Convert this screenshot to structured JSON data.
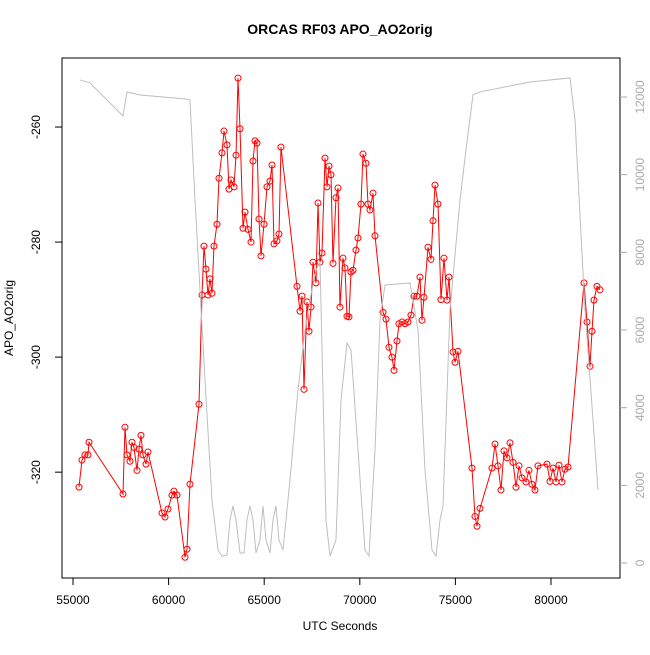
{
  "chart_data": {
    "type": "line",
    "title": "ORCAS RF03 APO_AO2orig",
    "x_label": "UTC Seconds",
    "y_label": "APO_AO2orig",
    "xlim": [
      54425,
      83609
    ],
    "ylim": [
      -338.4,
      -248
    ],
    "y2lim": [
      -386,
      13004
    ],
    "xticks": [
      55000,
      60000,
      65000,
      70000,
      75000,
      80000
    ],
    "yticks": [
      -260,
      -280,
      -300,
      -320
    ],
    "y2ticks": [
      0,
      2000,
      4000,
      6000,
      8000,
      10000,
      12000
    ],
    "y2tick_color": "#aaaaaa",
    "series": [
      {
        "color": "#ff0000",
        "marker": "circle",
        "x": [
          55314,
          55470,
          55627,
          55784,
          55837,
          57615,
          57720,
          57824,
          57981,
          58086,
          58190,
          58347,
          58452,
          58556,
          58661,
          58818,
          58923,
          59655,
          59812,
          59969,
          60178,
          60282,
          60439,
          60858,
          60962,
          61119,
          61590,
          61747,
          61851,
          61956,
          62060,
          62165,
          62270,
          62374,
          62531,
          62636,
          62793,
          62898,
          63055,
          63159,
          63264,
          63421,
          63526,
          63630,
          63735,
          63892,
          63996,
          64153,
          64310,
          64414,
          64519,
          64624,
          64728,
          64833,
          64990,
          65146,
          65303,
          65408,
          65512,
          65669,
          65774,
          65878,
          66715,
          66872,
          66977,
          67081,
          67238,
          67343,
          67448,
          67552,
          67709,
          67814,
          67918,
          68023,
          68180,
          68285,
          68389,
          68494,
          68598,
          68755,
          68860,
          68964,
          69121,
          69226,
          69331,
          69435,
          69540,
          69644,
          69801,
          69906,
          70063,
          70167,
          70324,
          70429,
          70533,
          70690,
          70795,
          71213,
          71370,
          71527,
          71684,
          71789,
          71946,
          72050,
          72207,
          72364,
          72521,
          72678,
          72834,
          72991,
          73148,
          73253,
          73358,
          73567,
          73724,
          73829,
          73933,
          74090,
          74247,
          74404,
          74561,
          74666,
          74875,
          74979,
          75136,
          75868,
          76025,
          76130,
          76287,
          76914,
          77071,
          77228,
          77385,
          77542,
          77699,
          77856,
          78013,
          78170,
          78326,
          78483,
          78692,
          78849,
          79006,
          79163,
          79320,
          79791,
          79948,
          80105,
          80262,
          80418,
          80575,
          80732,
          80889,
          81726,
          81883,
          82040,
          82144,
          82249,
          82406,
          82563
        ],
        "values": [
          -322.6,
          -317.9,
          -317.0,
          -317.0,
          -314.8,
          -323.8,
          -312.2,
          -317.0,
          -318.1,
          -314.8,
          -315.7,
          -319.7,
          -316.0,
          -313.6,
          -317.0,
          -318.6,
          -316.5,
          -327.1,
          -327.8,
          -326.4,
          -324.0,
          -323.3,
          -324.0,
          -334.8,
          -333.4,
          -322.1,
          -308.2,
          -289.2,
          -280.7,
          -284.7,
          -289.2,
          -286.4,
          -288.9,
          -280.7,
          -276.9,
          -268.9,
          -264.5,
          -260.7,
          -263.1,
          -270.8,
          -269.2,
          -270.4,
          -264.9,
          -251.5,
          -260.3,
          -277.6,
          -274.8,
          -277.8,
          -280.0,
          -265.9,
          -262.4,
          -262.8,
          -276.0,
          -282.4,
          -276.9,
          -270.4,
          -269.4,
          -266.6,
          -280.3,
          -279.8,
          -278.6,
          -263.5,
          -287.7,
          -292.0,
          -289.4,
          -305.6,
          -290.4,
          -295.5,
          -291.3,
          -283.5,
          -287.1,
          -273.2,
          -283.5,
          -281.9,
          -265.4,
          -270.4,
          -266.8,
          -268.3,
          -283.7,
          -272.3,
          -270.6,
          -291.3,
          -282.8,
          -284.5,
          -292.9,
          -293.0,
          -285.2,
          -284.9,
          -281.4,
          -279.3,
          -273.4,
          -264.7,
          -266.3,
          -273.4,
          -274.4,
          -271.5,
          -278.9,
          -292.2,
          -293.4,
          -298.3,
          -300.0,
          -302.3,
          -297.2,
          -294.2,
          -293.9,
          -294.2,
          -293.9,
          -292.7,
          -289.4,
          -289.4,
          -286.1,
          -293.6,
          -289.6,
          -280.9,
          -283.0,
          -276.3,
          -270.1,
          -273.4,
          -290.0,
          -282.8,
          -290.1,
          -286.1,
          -299.1,
          -300.9,
          -299.0,
          -319.3,
          -327.7,
          -329.4,
          -326.3,
          -319.3,
          -315.1,
          -318.9,
          -323.1,
          -316.3,
          -317.5,
          -314.9,
          -318.3,
          -322.6,
          -318.9,
          -321.0,
          -321.7,
          -319.7,
          -322.1,
          -323.1,
          -318.9,
          -318.6,
          -321.6,
          -319.3,
          -321.7,
          -318.8,
          -321.7,
          -319.5,
          -319.1,
          -287.1,
          -293.9,
          -301.6,
          -295.5,
          -290.1,
          -287.7,
          -288.3
        ]
      },
      {
        "color": "#bebebe",
        "axis": "y2",
        "x": [
          55366,
          55889,
          57615,
          57824,
          58504,
          60858,
          61119,
          61381,
          61904,
          62270,
          62584,
          62793,
          63054,
          63211,
          63368,
          63525,
          63734,
          63944,
          64100,
          64257,
          64414,
          64571,
          64780,
          64937,
          65094,
          65303,
          65460,
          65617,
          65774,
          65983,
          66349,
          66768,
          67134,
          67395,
          67709,
          67918,
          68232,
          68441,
          68755,
          69017,
          69331,
          69540,
          69906,
          70272,
          70481,
          70795,
          71056,
          71318,
          72626,
          73044,
          73410,
          73776,
          73985,
          74194,
          74351,
          74717,
          75240,
          75554,
          75920,
          76286,
          78901,
          80994,
          81255,
          81778,
          82197,
          82458
        ],
        "values": [
          12439,
          12362,
          11512,
          12130,
          12052,
          11950,
          11924,
          9348,
          4713,
          1622,
          335,
          180,
          206,
          1107,
          1468,
          1107,
          258,
          258,
          1107,
          1468,
          1107,
          258,
          592,
          1468,
          592,
          258,
          1107,
          1468,
          592,
          335,
          2138,
          4455,
          6000,
          6773,
          7546,
          7752,
          1107,
          180,
          592,
          4198,
          5666,
          5485,
          2910,
          335,
          180,
          2910,
          6258,
          7159,
          7211,
          6000,
          2395,
          335,
          180,
          1107,
          1468,
          6516,
          9348,
          10636,
          12052,
          12130,
          12387,
          12490,
          11409,
          6516,
          3683,
          1880
        ]
      }
    ]
  }
}
